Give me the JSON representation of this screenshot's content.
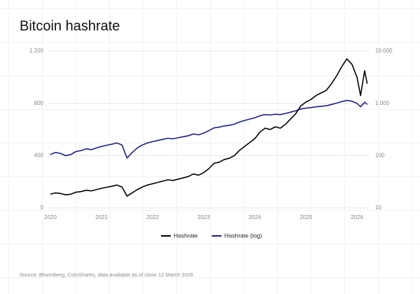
{
  "chart_data": {
    "type": "line",
    "title": "Bitcoin hashrate",
    "source": "Source: Bloomberg, CoinShares, data available as of close 12 March 2026",
    "x": [
      2020.0,
      2020.1,
      2020.2,
      2020.3,
      2020.4,
      2020.5,
      2020.6,
      2020.7,
      2020.8,
      2020.9,
      2021.0,
      2021.1,
      2021.2,
      2021.3,
      2021.4,
      2021.5,
      2021.6,
      2021.7,
      2021.8,
      2021.9,
      2022.0,
      2022.1,
      2022.2,
      2022.3,
      2022.4,
      2022.5,
      2022.6,
      2022.7,
      2022.8,
      2022.9,
      2023.0,
      2023.1,
      2023.2,
      2023.3,
      2023.4,
      2023.5,
      2023.6,
      2023.7,
      2023.8,
      2023.9,
      2024.0,
      2024.1,
      2024.2,
      2024.3,
      2024.4,
      2024.5,
      2024.6,
      2024.7,
      2024.8,
      2024.9,
      2025.0,
      2025.1,
      2025.2,
      2025.3,
      2025.4,
      2025.5,
      2025.6,
      2025.7,
      2025.8,
      2025.9,
      2026.0,
      2026.07,
      2026.15,
      2026.2
    ],
    "series": [
      {
        "name": "Hashrate",
        "color": "#000000",
        "axis": "y",
        "values": [
          105,
          115,
          110,
          100,
          105,
          120,
          125,
          135,
          130,
          140,
          150,
          158,
          165,
          175,
          160,
          90,
          115,
          140,
          160,
          175,
          185,
          195,
          205,
          215,
          210,
          220,
          230,
          240,
          260,
          250,
          270,
          300,
          340,
          350,
          370,
          380,
          400,
          440,
          470,
          500,
          530,
          580,
          610,
          600,
          620,
          610,
          640,
          680,
          720,
          780,
          810,
          830,
          860,
          880,
          900,
          950,
          1010,
          1080,
          1140,
          1100,
          1000,
          860,
          1050,
          950
        ]
      },
      {
        "name": "Hashrate (log)",
        "color": "#1a1f8c",
        "axis": "y2",
        "values": [
          105,
          115,
          110,
          100,
          105,
          120,
          125,
          135,
          130,
          140,
          150,
          158,
          165,
          175,
          160,
          90,
          115,
          140,
          160,
          175,
          185,
          195,
          205,
          215,
          210,
          220,
          230,
          240,
          260,
          250,
          270,
          300,
          340,
          350,
          370,
          380,
          400,
          440,
          470,
          500,
          530,
          580,
          610,
          600,
          620,
          610,
          640,
          680,
          720,
          780,
          810,
          830,
          860,
          880,
          900,
          950,
          1010,
          1080,
          1140,
          1100,
          1000,
          860,
          1050,
          950
        ]
      }
    ],
    "xlim": [
      2020,
      2026.2
    ],
    "xticks": [
      2020,
      2021,
      2022,
      2023,
      2024,
      2025,
      2026
    ],
    "ylim": [
      0,
      1200
    ],
    "yticks": [
      0,
      400,
      800,
      {
        "value": 1200,
        "label": "1.200"
      }
    ],
    "y2lim": [
      10,
      10000
    ],
    "y2log": true,
    "y2ticks": [
      10,
      100,
      {
        "value": 1000,
        "label": "1.000"
      },
      {
        "value": 10000,
        "label": "10.000"
      }
    ],
    "grid": true
  }
}
